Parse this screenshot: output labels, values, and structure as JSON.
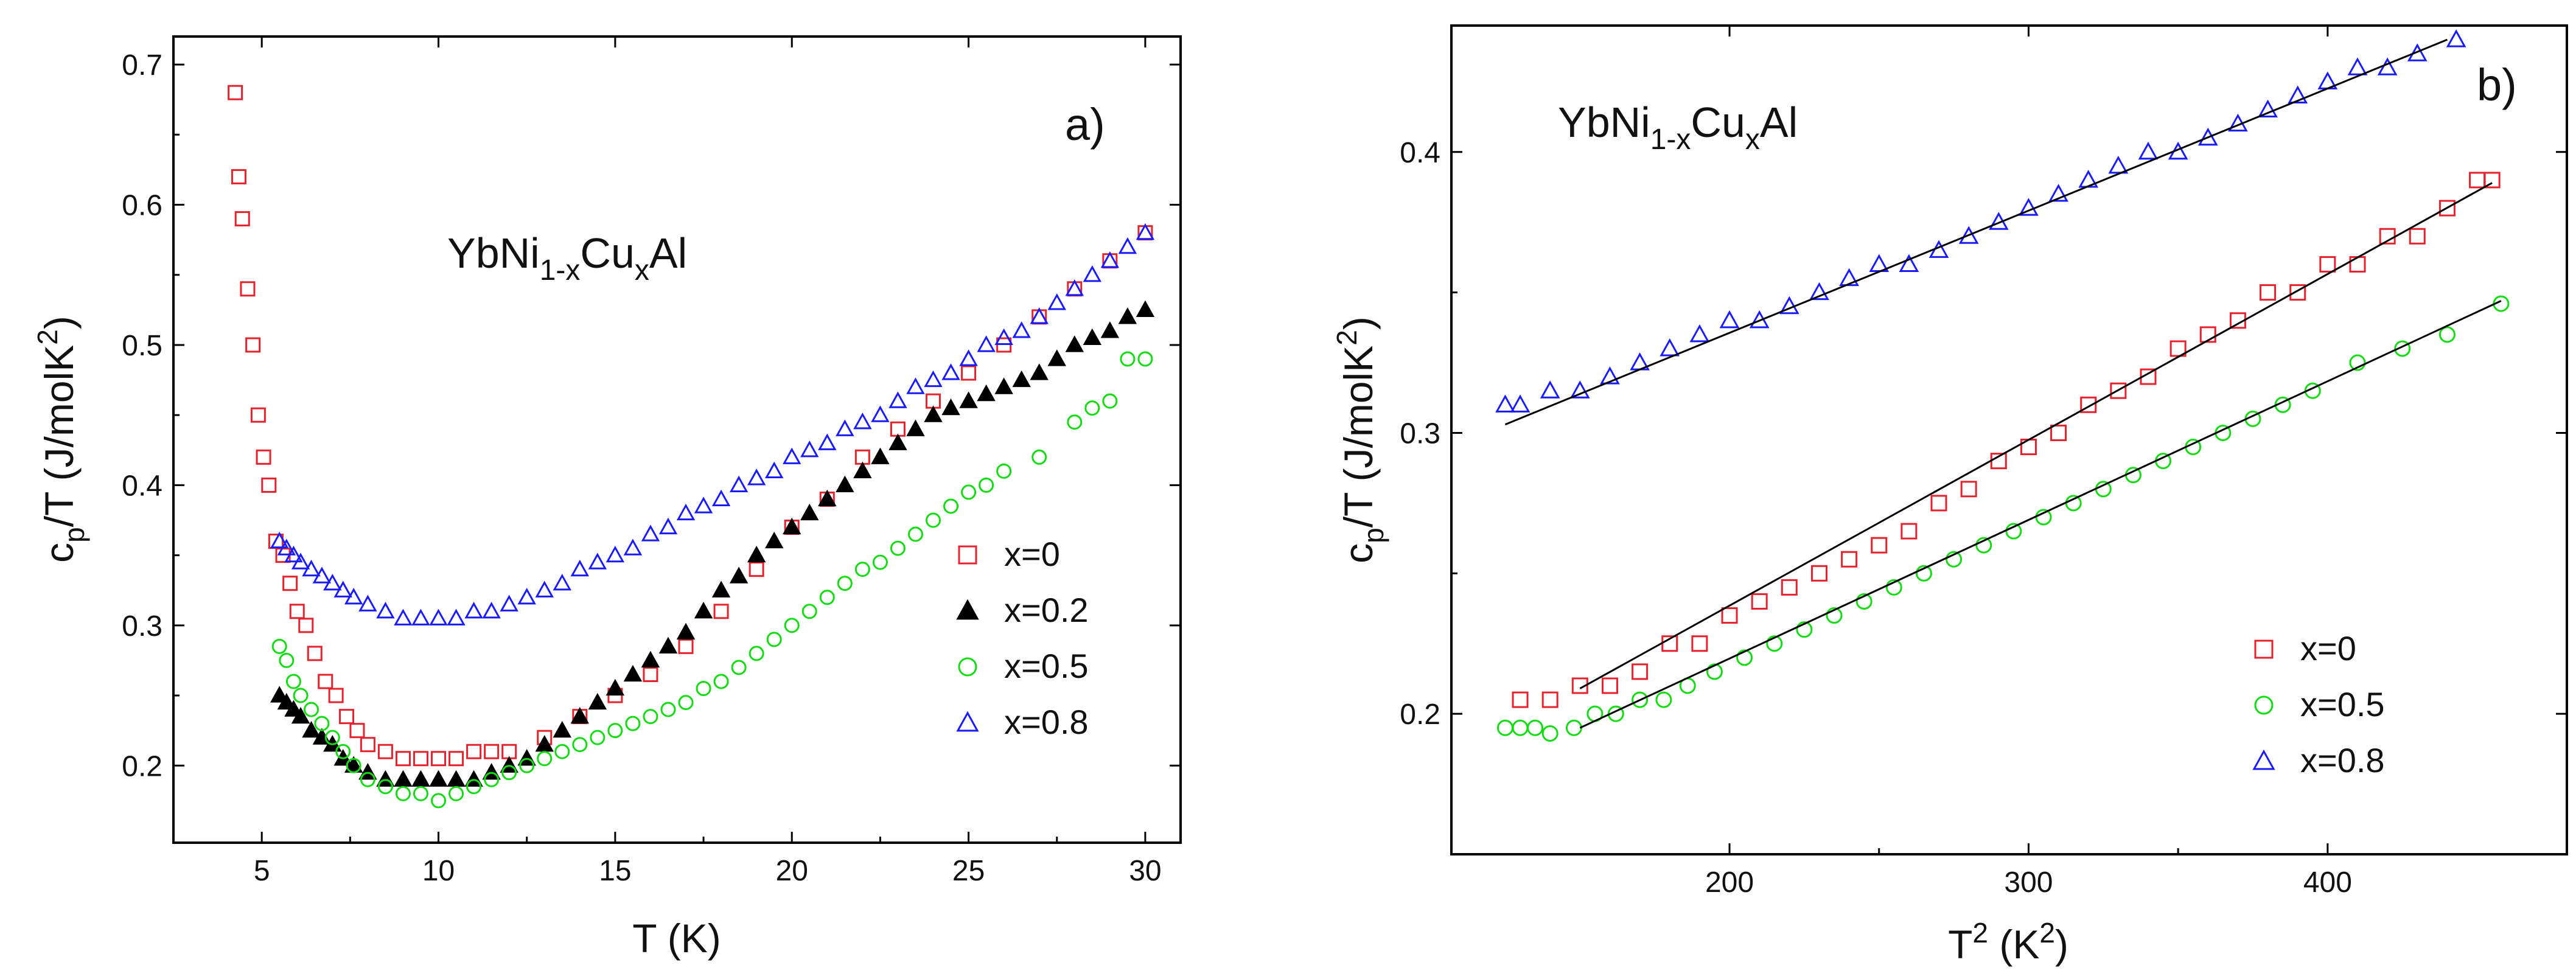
{
  "colors": {
    "x0": "#e8222d",
    "x02": "#000000",
    "x05": "#11dd11",
    "x08": "#1a1aff",
    "fit": "#000000",
    "axis": "#000000"
  },
  "chart_data": [
    {
      "panel": "a)",
      "type": "scatter",
      "title": {
        "base": "YbNi",
        "sub1": "1-x",
        "mid": "Cu",
        "sub2": "x",
        "tail": "Al"
      },
      "xlabel": "T (K)",
      "ylabel": {
        "base": "c",
        "sub": "p",
        "mid": "/T (J/molK",
        "sup": "2",
        "tail": ")"
      },
      "xlim": [
        2.5,
        31
      ],
      "ylim": [
        0.145,
        0.72
      ],
      "xticks": [
        5,
        10,
        15,
        20,
        25,
        30
      ],
      "xtick_labels": [
        "5",
        "10",
        "15",
        "20",
        "25",
        "30"
      ],
      "yticks": [
        0.2,
        0.3,
        0.4,
        0.5,
        0.6,
        0.7
      ],
      "ytick_labels": [
        "0.2",
        "0.3",
        "0.4",
        "0.5",
        "0.6",
        "0.7"
      ],
      "legend": [
        {
          "label": "x=0",
          "marker": "square",
          "color": "#e8222d"
        },
        {
          "label": "x=0.2",
          "marker": "triangle-filled",
          "color": "#000000"
        },
        {
          "label": "x=0.5",
          "marker": "circle",
          "color": "#11dd11"
        },
        {
          "label": "x=0.8",
          "marker": "triangle",
          "color": "#1a1aff"
        }
      ],
      "series": [
        {
          "name": "x=0",
          "marker": "square",
          "color": "#e8222d",
          "x": [
            4.25,
            4.35,
            4.45,
            4.6,
            4.75,
            4.9,
            5.05,
            5.2,
            5.4,
            5.6,
            5.8,
            6.0,
            6.25,
            6.5,
            6.8,
            7.1,
            7.4,
            7.7,
            8.0,
            8.5,
            9.0,
            9.5,
            10.0,
            10.5,
            11.0,
            11.5,
            12.0,
            13.0,
            14.0,
            15.0,
            16.0,
            17.0,
            18.0,
            19.0,
            20.0,
            21.0,
            22.0,
            23.0,
            24.0,
            25.0,
            26.0,
            27.0,
            28.0,
            29.0,
            30.0
          ],
          "y": [
            0.68,
            0.62,
            0.59,
            0.54,
            0.5,
            0.45,
            0.42,
            0.4,
            0.36,
            0.35,
            0.33,
            0.31,
            0.3,
            0.28,
            0.26,
            0.25,
            0.235,
            0.225,
            0.215,
            0.21,
            0.205,
            0.205,
            0.205,
            0.205,
            0.21,
            0.21,
            0.21,
            0.22,
            0.235,
            0.25,
            0.265,
            0.285,
            0.31,
            0.34,
            0.37,
            0.39,
            0.42,
            0.44,
            0.46,
            0.48,
            0.5,
            0.52,
            0.54,
            0.56,
            0.58
          ]
        },
        {
          "name": "x=0.2",
          "marker": "triangle-filled",
          "color": "#000000",
          "x": [
            5.5,
            5.7,
            5.9,
            6.1,
            6.4,
            6.7,
            7.0,
            7.3,
            7.6,
            8.0,
            8.5,
            9.0,
            9.5,
            10.0,
            10.5,
            11.0,
            11.5,
            12.0,
            12.5,
            13.0,
            13.5,
            14.0,
            14.5,
            15.0,
            15.5,
            16.0,
            16.5,
            17.0,
            17.5,
            18.0,
            18.5,
            19.0,
            19.5,
            20.0,
            20.5,
            21.0,
            21.5,
            22.0,
            22.5,
            23.0,
            23.5,
            24.0,
            24.5,
            25.0,
            25.5,
            26.0,
            26.5,
            27.0,
            27.5,
            28.0,
            28.5,
            29.0,
            29.5,
            30.0
          ],
          "y": [
            0.25,
            0.245,
            0.24,
            0.235,
            0.225,
            0.22,
            0.215,
            0.205,
            0.2,
            0.195,
            0.19,
            0.19,
            0.19,
            0.19,
            0.19,
            0.19,
            0.195,
            0.2,
            0.205,
            0.215,
            0.225,
            0.235,
            0.245,
            0.255,
            0.265,
            0.275,
            0.285,
            0.295,
            0.31,
            0.325,
            0.335,
            0.35,
            0.36,
            0.37,
            0.38,
            0.39,
            0.4,
            0.41,
            0.42,
            0.43,
            0.44,
            0.45,
            0.455,
            0.46,
            0.465,
            0.47,
            0.475,
            0.48,
            0.49,
            0.5,
            0.505,
            0.51,
            0.52,
            0.525
          ]
        },
        {
          "name": "x=0.5",
          "marker": "circle",
          "color": "#11dd11",
          "x": [
            5.5,
            5.7,
            5.9,
            6.1,
            6.4,
            6.7,
            7.0,
            7.3,
            7.6,
            8.0,
            8.5,
            9.0,
            9.5,
            10.0,
            10.5,
            11.0,
            11.5,
            12.0,
            12.5,
            13.0,
            13.5,
            14.0,
            14.5,
            15.0,
            15.5,
            16.0,
            16.5,
            17.0,
            17.5,
            18.0,
            18.5,
            19.0,
            19.5,
            20.0,
            20.5,
            21.0,
            21.5,
            22.0,
            22.5,
            23.0,
            23.5,
            24.0,
            24.5,
            25.0,
            25.5,
            26.0,
            27.0,
            28.0,
            28.5,
            29.0,
            29.5,
            30.0
          ],
          "y": [
            0.285,
            0.275,
            0.26,
            0.25,
            0.24,
            0.23,
            0.22,
            0.21,
            0.2,
            0.19,
            0.185,
            0.18,
            0.18,
            0.175,
            0.18,
            0.185,
            0.19,
            0.195,
            0.2,
            0.205,
            0.21,
            0.215,
            0.22,
            0.225,
            0.23,
            0.235,
            0.24,
            0.245,
            0.255,
            0.26,
            0.27,
            0.28,
            0.29,
            0.3,
            0.31,
            0.32,
            0.33,
            0.34,
            0.345,
            0.355,
            0.365,
            0.375,
            0.385,
            0.395,
            0.4,
            0.41,
            0.42,
            0.445,
            0.455,
            0.46,
            0.49,
            0.49
          ]
        },
        {
          "name": "x=0.8",
          "marker": "triangle",
          "color": "#1a1aff",
          "x": [
            5.5,
            5.7,
            5.9,
            6.1,
            6.4,
            6.7,
            7.0,
            7.3,
            7.6,
            8.0,
            8.5,
            9.0,
            9.5,
            10.0,
            10.5,
            11.0,
            11.5,
            12.0,
            12.5,
            13.0,
            13.5,
            14.0,
            14.5,
            15.0,
            15.5,
            16.0,
            16.5,
            17.0,
            17.5,
            18.0,
            18.5,
            19.0,
            19.5,
            20.0,
            20.5,
            21.0,
            21.5,
            22.0,
            22.5,
            23.0,
            23.5,
            24.0,
            24.5,
            25.0,
            25.5,
            26.0,
            26.5,
            27.0,
            27.5,
            28.0,
            28.5,
            29.0,
            29.5,
            30.0
          ],
          "y": [
            0.36,
            0.355,
            0.35,
            0.345,
            0.34,
            0.335,
            0.33,
            0.325,
            0.32,
            0.315,
            0.31,
            0.305,
            0.305,
            0.305,
            0.305,
            0.31,
            0.31,
            0.315,
            0.32,
            0.325,
            0.33,
            0.34,
            0.345,
            0.35,
            0.355,
            0.365,
            0.37,
            0.38,
            0.385,
            0.39,
            0.4,
            0.405,
            0.41,
            0.42,
            0.425,
            0.43,
            0.44,
            0.445,
            0.45,
            0.46,
            0.47,
            0.475,
            0.48,
            0.49,
            0.5,
            0.505,
            0.51,
            0.52,
            0.53,
            0.54,
            0.55,
            0.56,
            0.57,
            0.58
          ]
        }
      ]
    },
    {
      "panel": "b)",
      "type": "scatter",
      "title": {
        "base": "YbNi",
        "sub1": "1-x",
        "mid": "Cu",
        "sub2": "x",
        "tail": "Al"
      },
      "xlabel": {
        "base": "T",
        "sup1": "2",
        "mid": " (K",
        "sup2": "2",
        "tail": ")"
      },
      "ylabel": {
        "base": "c",
        "sub": "p",
        "mid": "/T (J/molK",
        "sup": "2",
        "tail": ")"
      },
      "xlim": [
        107,
        480
      ],
      "ylim": [
        0.15,
        0.445
      ],
      "xticks": [
        200,
        300,
        400
      ],
      "xtick_labels": [
        "200",
        "300",
        "400"
      ],
      "yticks": [
        0.2,
        0.3,
        0.4
      ],
      "ytick_labels": [
        "0.2",
        "0.3",
        "0.4"
      ],
      "legend": [
        {
          "label": "x=0",
          "marker": "square",
          "color": "#e8222d"
        },
        {
          "label": "x=0.5",
          "marker": "circle",
          "color": "#11dd11"
        },
        {
          "label": "x=0.8",
          "marker": "triangle",
          "color": "#1a1aff"
        }
      ],
      "series": [
        {
          "name": "x=0",
          "marker": "square",
          "color": "#e8222d",
          "x": [
            130,
            140,
            150,
            160,
            170,
            180,
            190,
            200,
            210,
            220,
            230,
            240,
            250,
            260,
            270,
            280,
            290,
            300,
            310,
            320,
            330,
            340,
            350,
            360,
            370,
            380,
            390,
            400,
            410,
            420,
            430,
            440,
            450,
            455
          ],
          "y": [
            0.205,
            0.205,
            0.21,
            0.21,
            0.215,
            0.225,
            0.225,
            0.235,
            0.24,
            0.245,
            0.25,
            0.255,
            0.26,
            0.265,
            0.275,
            0.28,
            0.29,
            0.295,
            0.3,
            0.31,
            0.315,
            0.32,
            0.33,
            0.335,
            0.34,
            0.35,
            0.35,
            0.36,
            0.36,
            0.37,
            0.37,
            0.38,
            0.39,
            0.39
          ],
          "fit": [
            [
              150,
              0.209
            ],
            [
              455,
              0.389
            ]
          ]
        },
        {
          "name": "x=0.5",
          "marker": "circle",
          "color": "#11dd11",
          "x": [
            125,
            130,
            135,
            140,
            148,
            155,
            162,
            170,
            178,
            186,
            195,
            205,
            215,
            225,
            235,
            245,
            255,
            265,
            275,
            285,
            295,
            305,
            315,
            325,
            335,
            345,
            355,
            365,
            375,
            385,
            395,
            410,
            425,
            440,
            458
          ],
          "y": [
            0.195,
            0.195,
            0.195,
            0.193,
            0.195,
            0.2,
            0.2,
            0.205,
            0.205,
            0.21,
            0.215,
            0.22,
            0.225,
            0.23,
            0.235,
            0.24,
            0.245,
            0.25,
            0.255,
            0.26,
            0.265,
            0.27,
            0.275,
            0.28,
            0.285,
            0.29,
            0.295,
            0.3,
            0.305,
            0.31,
            0.315,
            0.325,
            0.33,
            0.335,
            0.346
          ],
          "fit": [
            [
              150,
              0.195
            ],
            [
              458,
              0.347
            ]
          ]
        },
        {
          "name": "x=0.8",
          "marker": "triangle",
          "color": "#1a1aff",
          "x": [
            125,
            130,
            140,
            150,
            160,
            170,
            180,
            190,
            200,
            210,
            220,
            230,
            240,
            250,
            260,
            270,
            280,
            290,
            300,
            310,
            320,
            330,
            340,
            350,
            360,
            370,
            380,
            390,
            400,
            410,
            420,
            430,
            443
          ],
          "y": [
            0.31,
            0.31,
            0.315,
            0.315,
            0.32,
            0.325,
            0.33,
            0.335,
            0.34,
            0.34,
            0.345,
            0.35,
            0.355,
            0.36,
            0.36,
            0.365,
            0.37,
            0.375,
            0.38,
            0.385,
            0.39,
            0.395,
            0.4,
            0.4,
            0.405,
            0.41,
            0.415,
            0.42,
            0.425,
            0.43,
            0.43,
            0.435,
            0.44
          ],
          "fit": [
            [
              125,
              0.303
            ],
            [
              440,
              0.44
            ]
          ]
        }
      ]
    }
  ]
}
